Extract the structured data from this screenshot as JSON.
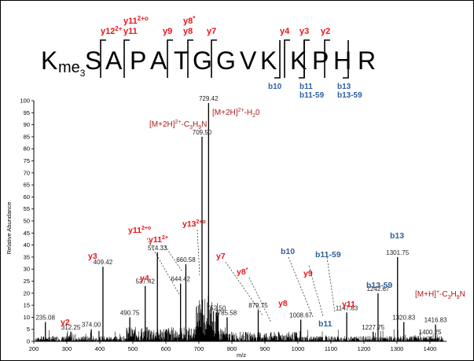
{
  "peptide": {
    "first_residue": "K",
    "modification": "me",
    "modification_sub": "3",
    "residues": [
      "S",
      "A",
      "P",
      "A",
      "T",
      "G",
      "G",
      "V",
      "K",
      "K",
      "P",
      "H",
      "R"
    ]
  },
  "fragment_map_labels": {
    "y": [
      {
        "base": "y12",
        "sup": "2+",
        "line2": ""
      },
      {
        "base": "y11",
        "sup": "2+o",
        "line2": "y11"
      },
      {
        "base": "y9",
        "sup": "",
        "line2": ""
      },
      {
        "base": "y8",
        "sup": "*",
        "line2": "y8"
      },
      {
        "base": "y7",
        "sup": "",
        "line2": ""
      },
      {
        "base": "y4",
        "sup": "",
        "line2": ""
      },
      {
        "base": "y3",
        "sup": "",
        "line2": ""
      },
      {
        "base": "y2",
        "sup": "",
        "line2": ""
      }
    ],
    "b": [
      {
        "base": "b10",
        "line2": ""
      },
      {
        "base": "b11",
        "line2": "b11-59"
      },
      {
        "base": "b13",
        "line2": "b13-59"
      }
    ]
  },
  "colors": {
    "y_ion": "#e8141c",
    "b_ion": "#2f5f9e",
    "precursor": "#b01818",
    "spectrum": "#000000",
    "accent_green": "#3aa64a"
  },
  "chart_data": {
    "type": "bar",
    "xlabel": "m/z",
    "ylabel": "Relative Abundance",
    "xlim": [
      200,
      1450
    ],
    "ylim": [
      0,
      100
    ],
    "xticks": [
      200,
      300,
      400,
      500,
      600,
      700,
      800,
      900,
      1000,
      1100,
      1200,
      1300,
      1400
    ],
    "yticks": [
      0,
      5,
      10,
      15,
      20,
      25,
      30,
      35,
      40,
      45,
      50,
      55,
      60,
      65,
      70,
      75,
      80,
      85,
      90,
      95,
      100
    ],
    "peaks": [
      {
        "mz": 235.08,
        "intensity": 8,
        "label": "235.08"
      },
      {
        "mz": 312.25,
        "intensity": 4,
        "label": "312.25"
      },
      {
        "mz": 374.0,
        "intensity": 5,
        "label": "374.00"
      },
      {
        "mz": 409.42,
        "intensity": 31,
        "label": "409.42"
      },
      {
        "mz": 490.75,
        "intensity": 10,
        "label": "490.75"
      },
      {
        "mz": 537.42,
        "intensity": 23,
        "label": "537.42"
      },
      {
        "mz": 574.33,
        "intensity": 37,
        "label": "574.33"
      },
      {
        "mz": 644.42,
        "intensity": 24,
        "label": "644.42"
      },
      {
        "mz": 660.58,
        "intensity": 32,
        "label": "660.58"
      },
      {
        "mz": 709.5,
        "intensity": 85,
        "label": "709.50"
      },
      {
        "mz": 729.42,
        "intensity": 99,
        "label": "729.42"
      },
      {
        "mz": 752.5,
        "intensity": 12,
        "label": "752.50"
      },
      {
        "mz": 785.58,
        "intensity": 10,
        "label": "785.58"
      },
      {
        "mz": 879.75,
        "intensity": 13,
        "label": "879.75"
      },
      {
        "mz": 1008.67,
        "intensity": 9,
        "label": "1008.67"
      },
      {
        "mz": 1147.83,
        "intensity": 12,
        "label": "1147.83"
      },
      {
        "mz": 1227.75,
        "intensity": 4,
        "label": "1227.75"
      },
      {
        "mz": 1242.67,
        "intensity": 20,
        "label": "1242.67"
      },
      {
        "mz": 1301.75,
        "intensity": 35,
        "label": "1301.75"
      },
      {
        "mz": 1320.83,
        "intensity": 8,
        "label": "1320.83"
      },
      {
        "mz": 1400.25,
        "intensity": 2,
        "label": "1400.25"
      },
      {
        "mz": 1416.83,
        "intensity": 7,
        "label": "1416.83"
      }
    ],
    "ion_annotations": [
      {
        "text": "y2",
        "sup": "",
        "color": "y",
        "mz": 312.25
      },
      {
        "text": "y3",
        "sup": "",
        "color": "y",
        "mz": 409.42
      },
      {
        "text": "y4",
        "sup": "",
        "color": "y",
        "mz": 537.42
      },
      {
        "text": "y11",
        "sup": "2+o",
        "color": "y",
        "mz": 537.42
      },
      {
        "text": "y11",
        "sup": "2+",
        "color": "y",
        "mz": 574.33
      },
      {
        "text": "y13",
        "sup": "2+o",
        "color": "y",
        "mz": 644.42
      },
      {
        "text": "y7",
        "sup": "",
        "color": "y",
        "mz": 785.58
      },
      {
        "text": "y8",
        "sup": "*",
        "color": "y",
        "mz": 852.0
      },
      {
        "text": "y8",
        "sup": "",
        "color": "y",
        "mz": 879.75
      },
      {
        "text": "y9",
        "sup": "",
        "color": "y",
        "mz": 980.0
      },
      {
        "text": "y11",
        "sup": "",
        "color": "y",
        "mz": 1147.83
      },
      {
        "text": "b10",
        "sup": "",
        "color": "b",
        "mz": 952.0
      },
      {
        "text": "b11",
        "sup": "",
        "color": "b",
        "mz": 1073.0
      },
      {
        "text": "b11-59",
        "sup": "",
        "color": "b",
        "mz": 1008.67
      },
      {
        "text": "b13",
        "sup": "",
        "color": "b",
        "mz": 1301.75
      },
      {
        "text": "b13-59",
        "sup": "",
        "color": "b",
        "mz": 1242.67
      }
    ],
    "precursor_labels": [
      {
        "text": "[M+2H]",
        "sup": "2+",
        "tail": "-H",
        "sub": "2",
        "tail2": "0"
      },
      {
        "text": "[M+2H]",
        "sup": "2+",
        "tail": "-C",
        "sub": "3",
        "tail2": "H",
        "sub2": "9",
        "tail3": "N"
      },
      {
        "text": "[M+H]",
        "sup": "+",
        "tail": "-C",
        "sub": "3",
        "tail2": "H",
        "sub2": "9",
        "tail3": "N"
      }
    ]
  }
}
